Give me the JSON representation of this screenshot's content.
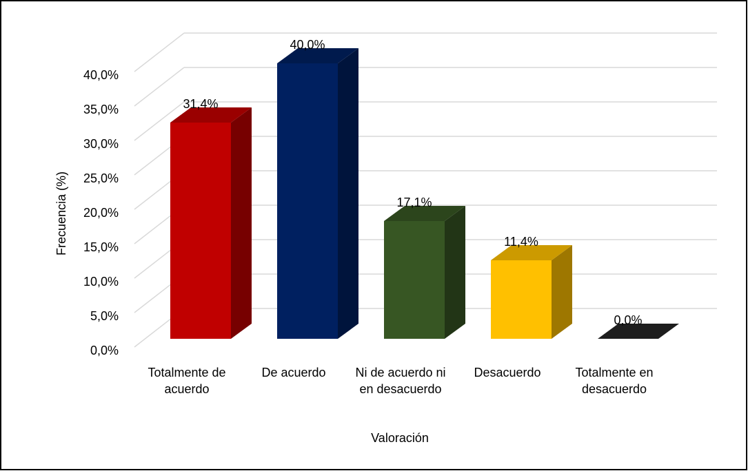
{
  "chart_data": {
    "type": "bar3d",
    "categories": [
      "Totalmente de acuerdo",
      "De acuerdo",
      "Ni de acuerdo ni en desacuerdo",
      "Desacuerdo",
      "Totalmente en desacuerdo"
    ],
    "values": [
      31.4,
      40.0,
      17.1,
      11.4,
      0.0
    ],
    "value_labels": [
      "31,4%",
      "40,0%",
      "17,1%",
      "11,4%",
      "0,0%"
    ],
    "colors": [
      "#c00000",
      "#002060",
      "#375623",
      "#ffc000",
      "#262626"
    ],
    "ylim": [
      0,
      40
    ],
    "yticks": [
      {
        "value": 0,
        "label": "0,0%"
      },
      {
        "value": 5,
        "label": "5,0%"
      },
      {
        "value": 10,
        "label": "10,0%"
      },
      {
        "value": 15,
        "label": "15,0%"
      },
      {
        "value": 20,
        "label": "20,0%"
      },
      {
        "value": 25,
        "label": "25,0%"
      },
      {
        "value": 30,
        "label": "30,0%"
      },
      {
        "value": 35,
        "label": "35,0%"
      },
      {
        "value": 40,
        "label": "40,0%"
      }
    ],
    "ylabel": "Frecuencia (%)",
    "xlabel": "Valoración",
    "grid": true
  }
}
